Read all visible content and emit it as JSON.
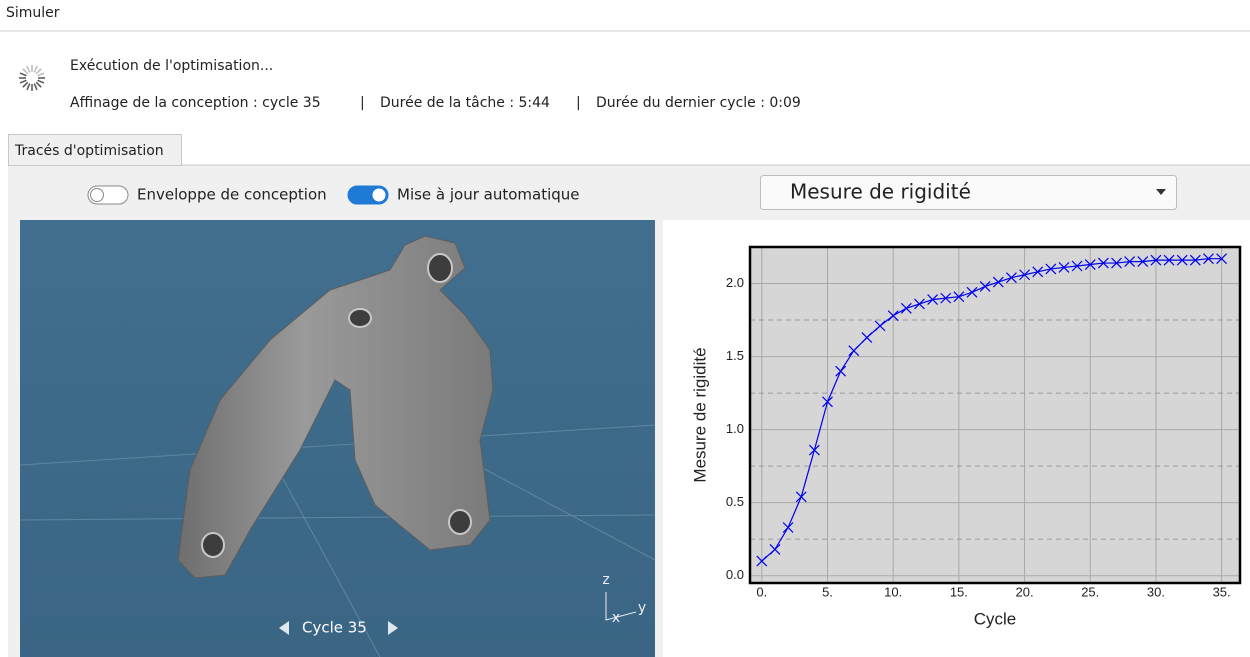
{
  "header": {
    "title": "Simuler"
  },
  "status": {
    "heading": "Exécution de l'optimisation...",
    "details": [
      "Affinage de la conception : cycle 35",
      "Durée de la tâche : 5:44",
      "Durée du dernier cycle : 0:09"
    ],
    "separator": "|"
  },
  "tabs": [
    "Tracés d'optimisation"
  ],
  "toggles": [
    {
      "label": "Enveloppe de conception",
      "on": false
    },
    {
      "label": "Mise à jour automatique",
      "on": true
    }
  ],
  "dropdown": {
    "value": "Mesure de rigidité"
  },
  "viewport": {
    "cycle_label": "Cycle 35",
    "axes": [
      "z",
      "x",
      "y"
    ]
  },
  "chart_data": {
    "type": "line",
    "marker": "x",
    "color": "#0000ee",
    "x_label": "Cycle",
    "y_label": "Mesure de rigidité",
    "x": [
      0,
      1,
      2,
      3,
      4,
      5,
      6,
      7,
      8,
      9,
      10,
      11,
      12,
      13,
      14,
      15,
      16,
      17,
      18,
      19,
      20,
      21,
      22,
      23,
      24,
      25,
      26,
      27,
      28,
      29,
      30,
      31,
      32,
      33,
      34,
      35
    ],
    "values": [
      0.1,
      0.18,
      0.33,
      0.54,
      0.86,
      1.19,
      1.4,
      1.54,
      1.63,
      1.71,
      1.78,
      1.83,
      1.86,
      1.89,
      1.9,
      1.91,
      1.94,
      1.98,
      2.01,
      2.04,
      2.06,
      2.08,
      2.1,
      2.11,
      2.12,
      2.13,
      2.14,
      2.14,
      2.15,
      2.15,
      2.16,
      2.16,
      2.16,
      2.16,
      2.17,
      2.17
    ],
    "xlim": [
      -0.9,
      36.4
    ],
    "ylim": [
      -0.05,
      2.25
    ],
    "xticks": [
      {
        "value": 0,
        "label": "0."
      },
      {
        "value": 5,
        "label": "5."
      },
      {
        "value": 10,
        "label": "10."
      },
      {
        "value": 15,
        "label": "15."
      },
      {
        "value": 20,
        "label": "20."
      },
      {
        "value": 25,
        "label": "25."
      },
      {
        "value": 30,
        "label": "30."
      },
      {
        "value": 35,
        "label": "35."
      }
    ],
    "yticks": [
      {
        "value": 0,
        "label": "0.0"
      },
      {
        "value": 0.5,
        "label": "0.5"
      },
      {
        "value": 1,
        "label": "1.0"
      },
      {
        "value": 1.5,
        "label": "1.5"
      },
      {
        "value": 2,
        "label": "2.0"
      }
    ],
    "yminor": [
      0.25,
      0.75,
      1.25,
      1.75
    ],
    "grid": true
  }
}
